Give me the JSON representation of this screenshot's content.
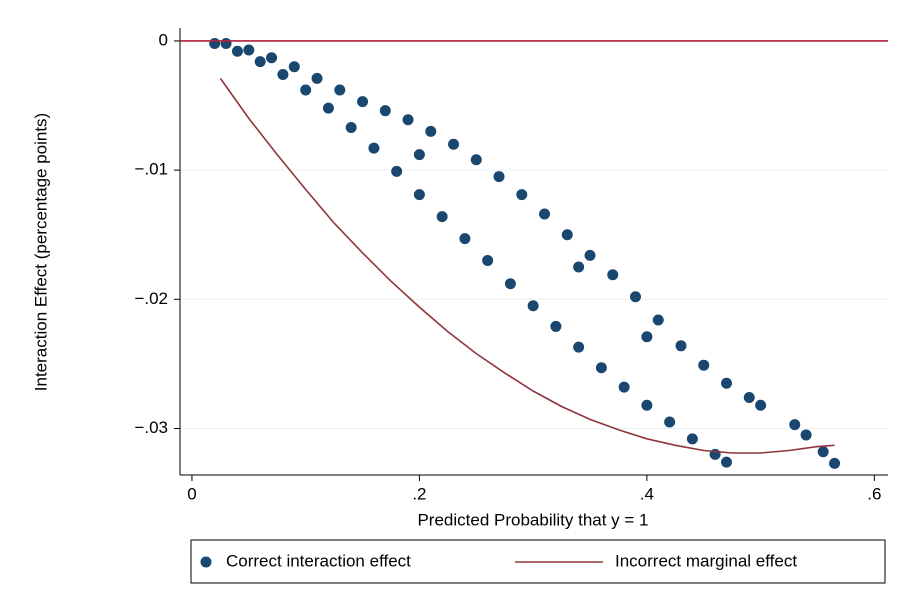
{
  "chart_data": {
    "type": "scatter",
    "x_label": "Predicted Probability that y = 1",
    "y_label": "Interaction Effect (percentage points)",
    "xlim": [
      -0.0105,
      0.612
    ],
    "ylim": [
      -0.0336,
      0.001
    ],
    "xticks": [
      0,
      {
        "value": 0.2,
        "label": ".2"
      },
      {
        "value": 0.4,
        "label": ".4"
      },
      {
        "value": 0.6,
        "label": ".6"
      }
    ],
    "yticks": [
      0,
      {
        "value": -0.01,
        "label": "−.01"
      },
      {
        "value": -0.02,
        "label": "−.02"
      },
      {
        "value": -0.03,
        "label": "−.03"
      }
    ],
    "grid": true,
    "yline": {
      "value": 0,
      "color": "#b0203c"
    },
    "legend": "bottom",
    "series": [
      {
        "name": "Correct interaction effect",
        "type": "scatter",
        "color": "#1a476f",
        "x": [
          0.02,
          0.04,
          0.06,
          0.08,
          0.1,
          0.12,
          0.14,
          0.16,
          0.18,
          0.2,
          0.22,
          0.24,
          0.26,
          0.28,
          0.3,
          0.32,
          0.34,
          0.36,
          0.38,
          0.4,
          0.42,
          0.44,
          0.46,
          0.47,
          0.03,
          0.05,
          0.07,
          0.09,
          0.11,
          0.13,
          0.15,
          0.17,
          0.19,
          0.21,
          0.23,
          0.25,
          0.27,
          0.29,
          0.31,
          0.33,
          0.35,
          0.37,
          0.39,
          0.41,
          0.43,
          0.45,
          0.47,
          0.49,
          0.5,
          0.53,
          0.54,
          0.555,
          0.565,
          0.2,
          0.34,
          0.4
        ],
        "values": [
          -0.0002,
          -0.0008,
          -0.0016,
          -0.0026,
          -0.0038,
          -0.0052,
          -0.0067,
          -0.0083,
          -0.0101,
          -0.0119,
          -0.0136,
          -0.0153,
          -0.017,
          -0.0188,
          -0.0205,
          -0.0221,
          -0.0237,
          -0.0253,
          -0.0268,
          -0.0282,
          -0.0295,
          -0.0308,
          -0.032,
          -0.0326,
          -0.0002,
          -0.0007,
          -0.0013,
          -0.002,
          -0.0029,
          -0.0038,
          -0.0047,
          -0.0054,
          -0.0061,
          -0.007,
          -0.008,
          -0.0092,
          -0.0105,
          -0.0119,
          -0.0134,
          -0.015,
          -0.0166,
          -0.0181,
          -0.0198,
          -0.0216,
          -0.0236,
          -0.0251,
          -0.0265,
          -0.0276,
          -0.0282,
          -0.0297,
          -0.0305,
          -0.0318,
          -0.0327,
          -0.0088,
          -0.0175,
          -0.0229
        ]
      },
      {
        "name": "Incorrect marginal effect",
        "type": "line",
        "color": "#90353b",
        "x": [
          0.025,
          0.05,
          0.075,
          0.1,
          0.125,
          0.15,
          0.175,
          0.2,
          0.225,
          0.25,
          0.275,
          0.3,
          0.325,
          0.35,
          0.375,
          0.4,
          0.425,
          0.45,
          0.475,
          0.5,
          0.525,
          0.55,
          0.565
        ],
        "values": [
          -0.0029,
          -0.006,
          -0.0088,
          -0.0115,
          -0.0141,
          -0.0164,
          -0.0186,
          -0.0206,
          -0.0225,
          -0.0242,
          -0.0257,
          -0.0271,
          -0.0283,
          -0.0293,
          -0.0301,
          -0.0308,
          -0.0313,
          -0.0317,
          -0.0319,
          -0.0319,
          -0.0317,
          -0.0314,
          -0.0313
        ]
      }
    ]
  }
}
